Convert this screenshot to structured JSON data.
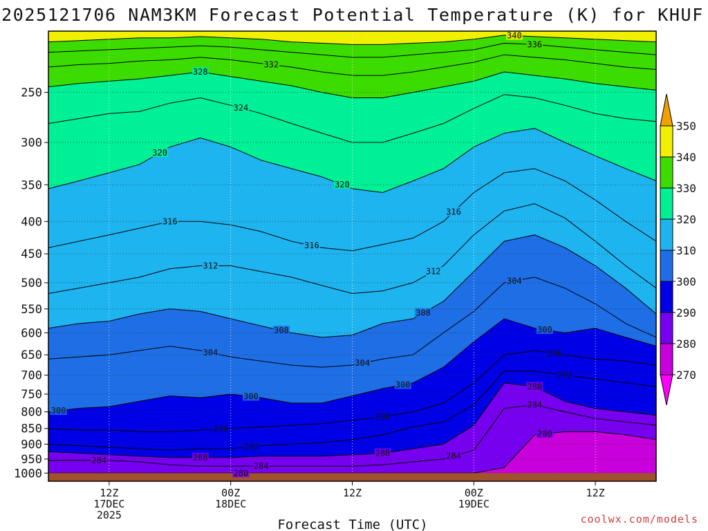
{
  "chart_data": {
    "type": "area",
    "title": "2025121706 NAM3KM Forecast Potential Temperature (K) for KHUF",
    "xlabel": "Forecast Time (UTC)",
    "ylabel": "",
    "credit": "coolwx.com/models",
    "hours": [
      0,
      3,
      6,
      9,
      12,
      15,
      18,
      21,
      24,
      27,
      30,
      33,
      36,
      39,
      42,
      45,
      48,
      51,
      54,
      57,
      60
    ],
    "x_ticks": [
      {
        "hour": 6,
        "label": "12Z",
        "label2": "17DEC",
        "label3": "2025"
      },
      {
        "hour": 18,
        "label": "00Z",
        "label2": "18DEC",
        "label3": ""
      },
      {
        "hour": 30,
        "label": "12Z",
        "label2": "",
        "label3": ""
      },
      {
        "hour": 42,
        "label": "00Z",
        "label2": "19DEC",
        "label3": ""
      },
      {
        "hour": 54,
        "label": "12Z",
        "label2": "",
        "label3": ""
      }
    ],
    "xlim": [
      0,
      60
    ],
    "y_axis": {
      "type": "log-pressure",
      "top_hpa": 200,
      "bottom_hpa": 1030
    },
    "y_ticks": [
      "250",
      "300",
      "350",
      "400",
      "450",
      "500",
      "550",
      "600",
      "650",
      "700",
      "750",
      "800",
      "850",
      "900",
      "950",
      "1000"
    ],
    "ground_pressure_hpa": 1000,
    "ground_color": "#a0522d",
    "colorbar": {
      "levels": [
        270,
        280,
        290,
        300,
        310,
        320,
        330,
        340,
        350
      ],
      "colors": [
        "#ff00ff",
        "#c800dc",
        "#7800f0",
        "#0000e6",
        "#1e6ee6",
        "#1eb4f0",
        "#00f096",
        "#3cdc00",
        "#f0f000",
        "#f0a000"
      ]
    },
    "contour_interval_K": 4,
    "isentropes_pressure_hpa": {
      "280": [
        1000,
        1000,
        1000,
        1000,
        1000,
        1000,
        1000,
        1000,
        1000,
        1000,
        1000,
        1000,
        1000,
        1000,
        1000,
        980,
        870,
        860,
        860,
        870,
        885
      ],
      "284": [
        955,
        955,
        955,
        960,
        970,
        975,
        975,
        975,
        975,
        975,
        975,
        970,
        960,
        950,
        920,
        790,
        780,
        800,
        820,
        830,
        840
      ],
      "288": [
        925,
        930,
        935,
        940,
        945,
        945,
        945,
        940,
        940,
        940,
        935,
        930,
        915,
        900,
        840,
        720,
        730,
        770,
        790,
        800,
        810
      ],
      "292": [
        900,
        905,
        910,
        915,
        920,
        915,
        915,
        905,
        900,
        895,
        885,
        870,
        845,
        830,
        780,
        690,
        690,
        700,
        710,
        720,
        730
      ],
      "296": [
        850,
        855,
        855,
        860,
        860,
        855,
        850,
        845,
        840,
        835,
        825,
        815,
        800,
        775,
        720,
        650,
        640,
        650,
        660,
        665,
        675
      ],
      "300": [
        800,
        790,
        785,
        770,
        755,
        760,
        750,
        760,
        775,
        775,
        755,
        735,
        720,
        680,
        620,
        570,
        590,
        600,
        590,
        610,
        630
      ],
      "304": [
        660,
        655,
        650,
        640,
        630,
        640,
        655,
        665,
        675,
        680,
        675,
        660,
        650,
        600,
        555,
        500,
        490,
        510,
        540,
        580,
        610
      ],
      "308": [
        590,
        580,
        575,
        560,
        550,
        555,
        570,
        585,
        600,
        610,
        605,
        580,
        570,
        535,
        480,
        430,
        420,
        440,
        470,
        510,
        560
      ],
      "312": [
        520,
        510,
        500,
        490,
        475,
        470,
        470,
        480,
        490,
        505,
        520,
        515,
        500,
        470,
        420,
        385,
        375,
        395,
        430,
        470,
        510
      ],
      "316": [
        440,
        430,
        420,
        410,
        400,
        400,
        405,
        415,
        430,
        440,
        445,
        435,
        425,
        400,
        360,
        335,
        330,
        345,
        370,
        400,
        430
      ],
      "320": [
        355,
        345,
        335,
        325,
        305,
        295,
        305,
        320,
        330,
        340,
        355,
        360,
        345,
        330,
        305,
        290,
        285,
        300,
        315,
        330,
        345
      ],
      "324": [
        280,
        275,
        270,
        268,
        260,
        255,
        262,
        270,
        280,
        290,
        300,
        300,
        290,
        280,
        265,
        252,
        255,
        262,
        270,
        275,
        278
      ],
      "328": [
        245,
        242,
        240,
        238,
        235,
        232,
        236,
        240,
        244,
        250,
        255,
        255,
        250,
        245,
        240,
        232,
        235,
        238,
        242,
        245,
        248
      ],
      "332": [
        228,
        226,
        225,
        223,
        222,
        220,
        222,
        225,
        228,
        232,
        235,
        235,
        232,
        228,
        224,
        218,
        220,
        222,
        225,
        228,
        230
      ],
      "336": [
        216,
        215,
        214,
        213,
        212,
        211,
        212,
        214,
        216,
        218,
        220,
        220,
        218,
        216,
        214,
        209,
        210,
        212,
        214,
        216,
        218
      ],
      "340": [
        208,
        207,
        206,
        205,
        205,
        204,
        205,
        206,
        208,
        209,
        210,
        210,
        209,
        208,
        206,
        203,
        204,
        205,
        206,
        207,
        208
      ]
    },
    "contour_labels": [
      {
        "theta": 332,
        "hour": 22,
        "text": "332"
      },
      {
        "theta": 328,
        "hour": 15,
        "text": "328"
      },
      {
        "theta": 324,
        "hour": 19,
        "text": "324"
      },
      {
        "theta": 320,
        "hour": 11,
        "text": "320"
      },
      {
        "theta": 340,
        "hour": 46,
        "text": "340"
      },
      {
        "theta": 336,
        "hour": 48,
        "text": "336"
      },
      {
        "theta": 316,
        "hour": 12,
        "text": "316"
      },
      {
        "theta": 320,
        "hour": 29,
        "text": "320"
      },
      {
        "theta": 316,
        "hour": 40,
        "text": "316"
      },
      {
        "theta": 312,
        "hour": 16,
        "text": "312"
      },
      {
        "theta": 316,
        "hour": 26,
        "text": "316"
      },
      {
        "theta": 312,
        "hour": 38,
        "text": "312"
      },
      {
        "theta": 304,
        "hour": 46,
        "text": "304"
      },
      {
        "theta": 308,
        "hour": 37,
        "text": "308"
      },
      {
        "theta": 304,
        "hour": 16,
        "text": "304"
      },
      {
        "theta": 308,
        "hour": 23,
        "text": "308"
      },
      {
        "theta": 304,
        "hour": 31,
        "text": "304"
      },
      {
        "theta": 300,
        "hour": 49,
        "text": "300"
      },
      {
        "theta": 296,
        "hour": 50,
        "text": "296"
      },
      {
        "theta": 292,
        "hour": 51,
        "text": "292"
      },
      {
        "theta": 288,
        "hour": 48,
        "text": "288"
      },
      {
        "theta": 284,
        "hour": 48,
        "text": "284"
      },
      {
        "theta": 300,
        "hour": 35,
        "text": "300"
      },
      {
        "theta": 300,
        "hour": 20,
        "text": "300"
      },
      {
        "theta": 300,
        "hour": 1,
        "text": "300"
      },
      {
        "theta": 296,
        "hour": 17,
        "text": "296"
      },
      {
        "theta": 292,
        "hour": 20,
        "text": "292"
      },
      {
        "theta": 296,
        "hour": 33,
        "text": "296"
      },
      {
        "theta": 288,
        "hour": 33,
        "text": "288"
      },
      {
        "theta": 288,
        "hour": 15,
        "text": "288"
      },
      {
        "theta": 284,
        "hour": 5,
        "text": "284"
      },
      {
        "theta": 280,
        "hour": 49,
        "text": "280"
      },
      {
        "theta": 284,
        "hour": 21,
        "text": "284"
      },
      {
        "theta": 284,
        "hour": 40,
        "text": "284"
      },
      {
        "theta": 280,
        "hour": 19,
        "text": "280"
      }
    ]
  }
}
